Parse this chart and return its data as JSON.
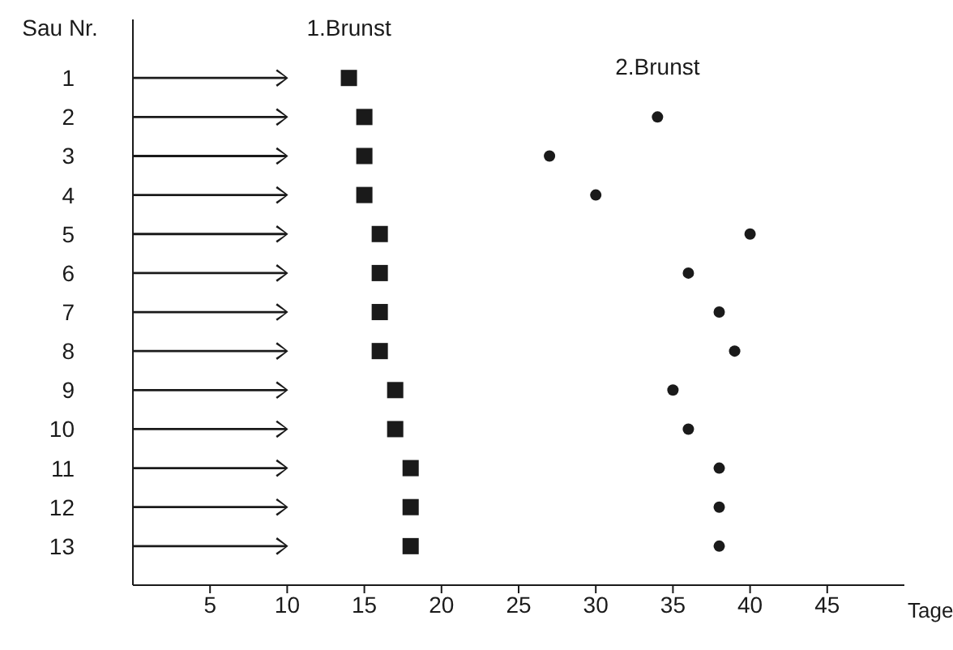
{
  "chart_data": {
    "type": "scatter",
    "orientation": "horizontal",
    "xlabel": "Tage",
    "ylabel": "Sau Nr.",
    "categories": [
      "1",
      "2",
      "3",
      "4",
      "5",
      "6",
      "7",
      "8",
      "9",
      "10",
      "11",
      "12",
      "13"
    ],
    "series": [
      {
        "name": "1.Brunst",
        "color": "#1a1a1a",
        "marker": "square",
        "values": [
          14,
          15,
          15,
          15,
          16,
          16,
          16,
          16,
          17,
          17,
          18,
          18,
          18
        ]
      },
      {
        "name": "2.Brunst",
        "color": "#1a1a1a",
        "marker": "circle",
        "values": [
          null,
          34,
          27,
          30,
          40,
          36,
          38,
          39,
          35,
          36,
          38,
          38,
          38
        ]
      }
    ],
    "xlim": [
      0,
      50
    ],
    "xticks": [
      5,
      10,
      15,
      20,
      25,
      30,
      35,
      40,
      45
    ]
  }
}
